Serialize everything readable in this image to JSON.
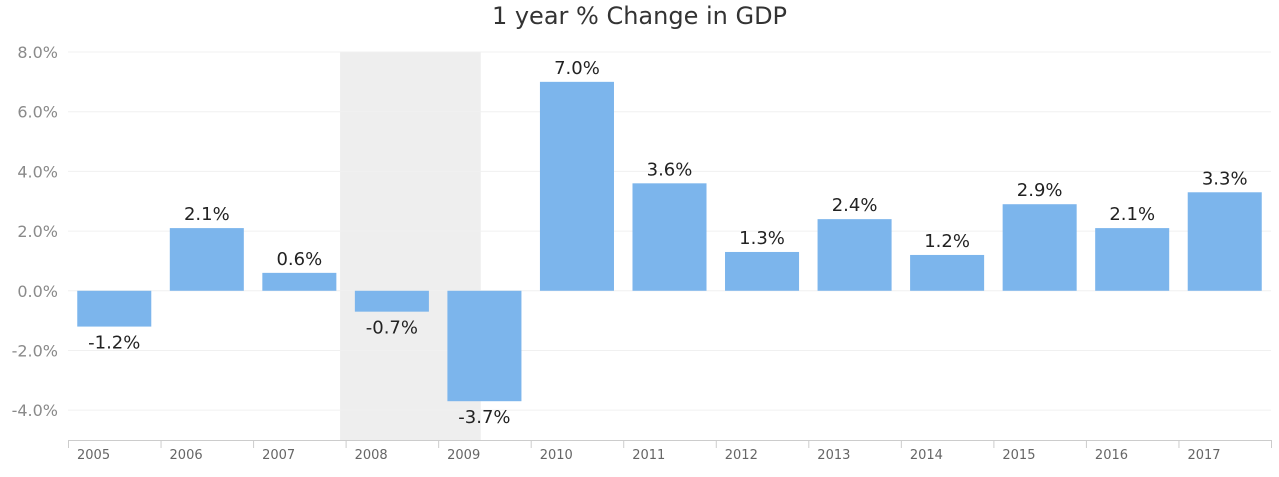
{
  "chart_data": {
    "type": "bar",
    "title": "1 year % Change in GDP",
    "xlabel": "",
    "ylabel": "",
    "categories": [
      "2005",
      "2006",
      "2007",
      "2008",
      "2009",
      "2010",
      "2011",
      "2012",
      "2013",
      "2014",
      "2015",
      "2016",
      "2017"
    ],
    "values": [
      -1.2,
      2.1,
      0.6,
      -0.7,
      -3.7,
      7.0,
      3.6,
      1.3,
      2.4,
      1.2,
      2.9,
      2.1,
      3.3
    ],
    "data_labels": [
      "-1.2%",
      "2.1%",
      "0.6%",
      "-0.7%",
      "-3.7%",
      "7.0%",
      "3.6%",
      "1.3%",
      "2.4%",
      "1.2%",
      "2.9%",
      "2.1%",
      "3.3%"
    ],
    "ylim": [
      -5,
      8
    ],
    "yticks": [
      8,
      6,
      4,
      2,
      0,
      -2,
      -4
    ],
    "ytick_labels": [
      "8.0%",
      "6.0%",
      "4.0%",
      "2.0%",
      "0.0%",
      "-2.0%",
      "-4.0%"
    ],
    "highlight_band": [
      "2008",
      "2009"
    ],
    "grid": true,
    "legend": "none",
    "colors": {
      "bar": "#7cb5ec",
      "band": "#eeeeee",
      "grid": "#f0f0f0",
      "axis": "#cccccc"
    }
  }
}
